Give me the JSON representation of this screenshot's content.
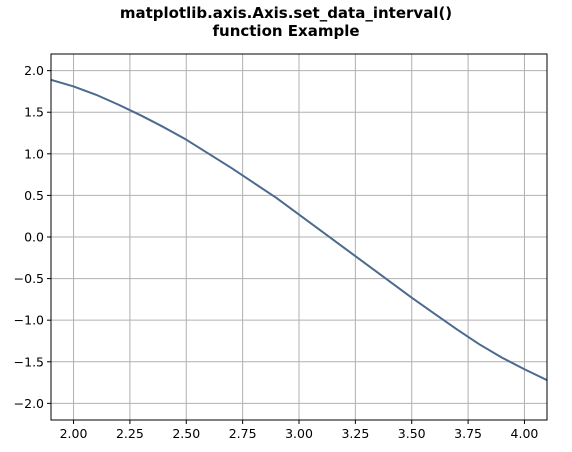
{
  "chart_data": {
    "type": "line",
    "title_line1": "matplotlib.axis.Axis.set_data_interval()",
    "title_line2": "function Example",
    "xlabel": "",
    "ylabel": "",
    "xlim": [
      1.9,
      4.1
    ],
    "ylim": [
      -2.2,
      2.2
    ],
    "grid": true,
    "x_ticks": [
      "2.00",
      "2.25",
      "2.50",
      "2.75",
      "3.00",
      "3.25",
      "3.50",
      "3.75",
      "4.00"
    ],
    "y_ticks": [
      "2.0",
      "1.5",
      "1.0",
      "0.5",
      "0.0",
      "−0.5",
      "−1.0",
      "−1.5",
      "−2.0"
    ],
    "series": [
      {
        "color": "#4c6a8e",
        "x": [
          1.9,
          2.0,
          2.1,
          2.2,
          2.3,
          2.4,
          2.5,
          2.6,
          2.7,
          2.8,
          2.9,
          3.0,
          3.1,
          3.2,
          3.3,
          3.4,
          3.5,
          3.6,
          3.7,
          3.8,
          3.9,
          4.0,
          4.1
        ],
        "y": [
          1.89,
          1.81,
          1.71,
          1.59,
          1.46,
          1.32,
          1.17,
          1.0,
          0.83,
          0.65,
          0.47,
          0.27,
          0.07,
          -0.13,
          -0.33,
          -0.53,
          -0.73,
          -0.92,
          -1.11,
          -1.29,
          -1.45,
          -1.59,
          -1.72
        ]
      }
    ]
  }
}
